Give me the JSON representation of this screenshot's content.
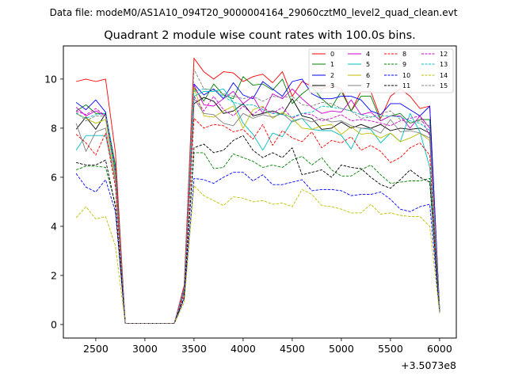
{
  "figure": {
    "suptitle": "Data file: modeM0/AS1A10_094T20_9000004164_29060cztM0_level2_quad_clean.evt"
  },
  "chart_data": {
    "type": "line",
    "title": "Quadrant 2 module wise count rates with 100.0s bins.",
    "xlabel": "",
    "ylabel": "",
    "offset_label": "+3.5073e8",
    "xlim": [
      2170,
      6170
    ],
    "ylim": [
      -0.55,
      11.35
    ],
    "xticks": [
      2500,
      3000,
      3500,
      4000,
      4500,
      5000,
      5500,
      6000
    ],
    "yticks": [
      0,
      2,
      4,
      6,
      8,
      10
    ],
    "grid": false,
    "legend_position": "top-right",
    "x": [
      2300,
      2400,
      2500,
      2600,
      2700,
      2800,
      2900,
      3000,
      3100,
      3200,
      3300,
      3400,
      3500,
      3600,
      3700,
      3800,
      3900,
      4000,
      4100,
      4200,
      4300,
      4400,
      4500,
      4600,
      4700,
      4800,
      4900,
      5000,
      5100,
      5200,
      5300,
      5400,
      5500,
      5600,
      5700,
      5800,
      5900,
      6000
    ],
    "series": [
      {
        "name": "0",
        "color": "#ff0000",
        "dash": false,
        "values": [
          9.9,
          10.0,
          9.9,
          10.0,
          7.0,
          0.05,
          0.05,
          0.05,
          0.05,
          0.05,
          0.05,
          1.6,
          10.85,
          10.3,
          10.0,
          10.3,
          10.25,
          9.9,
          10.1,
          10.2,
          9.85,
          10.3,
          9.3,
          9.9,
          9.7,
          9.6,
          9.75,
          9.6,
          8.7,
          9.5,
          9.5,
          8.4,
          9.3,
          9.6,
          9.3,
          8.8,
          8.9,
          0.65
        ]
      },
      {
        "name": "1",
        "color": "#008000",
        "dash": false,
        "values": [
          8.7,
          8.95,
          8.6,
          8.6,
          6.5,
          0.05,
          0.05,
          0.05,
          0.05,
          0.05,
          0.05,
          1.5,
          9.65,
          9.1,
          9.8,
          9.35,
          9.2,
          10.1,
          9.75,
          9.8,
          9.55,
          10.0,
          9.0,
          9.4,
          9.7,
          9.2,
          8.85,
          9.5,
          8.7,
          9.3,
          9.3,
          8.3,
          8.5,
          8.6,
          8.2,
          8.35,
          8.35,
          0.6
        ]
      },
      {
        "name": "2",
        "color": "#0000ff",
        "dash": false,
        "values": [
          9.05,
          8.75,
          9.15,
          8.65,
          6.3,
          0.05,
          0.05,
          0.05,
          0.05,
          0.05,
          0.05,
          1.45,
          9.8,
          9.35,
          9.6,
          9.2,
          9.85,
          9.35,
          9.2,
          9.9,
          9.6,
          9.3,
          9.9,
          10.0,
          9.4,
          9.2,
          9.2,
          9.3,
          9.3,
          9.15,
          8.7,
          8.55,
          9.0,
          9.0,
          8.75,
          8.5,
          8.9,
          0.6
        ]
      },
      {
        "name": "3",
        "color": "#000000",
        "dash": false,
        "values": [
          7.95,
          8.45,
          7.95,
          8.6,
          6.1,
          0.05,
          0.05,
          0.05,
          0.05,
          0.05,
          0.05,
          1.4,
          9.0,
          9.25,
          9.1,
          8.6,
          8.7,
          9.0,
          8.5,
          8.6,
          8.7,
          8.55,
          9.2,
          8.5,
          8.4,
          7.95,
          8.0,
          8.25,
          8.0,
          8.15,
          8.0,
          8.15,
          7.9,
          8.0,
          7.95,
          8.0,
          7.8,
          0.55
        ]
      },
      {
        "name": "4",
        "color": "#cc00cc",
        "dash": false,
        "values": [
          8.85,
          8.5,
          8.7,
          8.5,
          6.2,
          0.05,
          0.05,
          0.05,
          0.05,
          0.05,
          0.05,
          1.5,
          9.75,
          8.95,
          8.9,
          9.2,
          9.5,
          9.0,
          9.3,
          8.6,
          9.4,
          9.2,
          9.6,
          9.2,
          8.85,
          8.6,
          8.7,
          8.65,
          9.15,
          8.55,
          8.65,
          8.3,
          8.5,
          8.5,
          8.0,
          8.5,
          8.0,
          0.6
        ]
      },
      {
        "name": "5",
        "color": "#00bfbf",
        "dash": false,
        "values": [
          7.1,
          7.7,
          7.7,
          7.7,
          5.9,
          0.05,
          0.05,
          0.05,
          0.05,
          0.05,
          0.05,
          1.35,
          9.3,
          9.5,
          9.5,
          9.6,
          9.05,
          8.2,
          7.75,
          7.1,
          7.8,
          7.65,
          8.3,
          8.4,
          7.95,
          7.9,
          7.9,
          7.7,
          7.15,
          8.0,
          7.95,
          7.4,
          7.8,
          7.45,
          8.6,
          7.85,
          6.4,
          0.55
        ]
      },
      {
        "name": "6",
        "color": "#bfbf00",
        "dash": false,
        "values": [
          8.6,
          8.4,
          8.2,
          8.35,
          6.0,
          0.05,
          0.05,
          0.05,
          0.05,
          0.05,
          0.05,
          1.3,
          9.65,
          8.5,
          8.45,
          8.7,
          8.9,
          8.0,
          8.75,
          8.9,
          8.4,
          8.65,
          8.4,
          8.0,
          7.95,
          8.1,
          8.15,
          7.75,
          8.05,
          7.75,
          7.8,
          7.6,
          7.8,
          7.45,
          7.6,
          7.8,
          7.5,
          0.55
        ]
      },
      {
        "name": "7",
        "color": "#808080",
        "dash": false,
        "values": [
          8.2,
          7.05,
          7.85,
          8.0,
          5.8,
          0.05,
          0.05,
          0.05,
          0.05,
          0.05,
          0.05,
          1.3,
          9.2,
          8.6,
          8.55,
          8.2,
          8.1,
          8.6,
          8.4,
          8.55,
          8.45,
          8.6,
          8.25,
          8.4,
          8.25,
          8.4,
          8.25,
          8.3,
          8.1,
          8.0,
          8.0,
          7.8,
          8.35,
          7.85,
          7.9,
          7.8,
          7.6,
          0.55
        ]
      },
      {
        "name": "8",
        "color": "#ff0000",
        "dash": true,
        "values": [
          7.75,
          7.4,
          6.9,
          7.8,
          5.6,
          0.05,
          0.05,
          0.05,
          0.05,
          0.05,
          0.05,
          1.25,
          8.4,
          8.0,
          8.15,
          8.1,
          7.85,
          7.95,
          7.55,
          8.15,
          7.3,
          7.9,
          7.6,
          7.45,
          7.85,
          7.2,
          7.5,
          7.4,
          7.65,
          7.1,
          7.3,
          7.05,
          6.6,
          6.8,
          7.2,
          7.4,
          6.9,
          0.5
        ]
      },
      {
        "name": "9",
        "color": "#008000",
        "dash": true,
        "values": [
          6.3,
          6.45,
          6.45,
          6.4,
          4.9,
          0.05,
          0.05,
          0.05,
          0.05,
          0.05,
          0.05,
          1.1,
          7.0,
          7.0,
          6.35,
          6.4,
          6.95,
          6.8,
          6.65,
          6.4,
          6.5,
          6.4,
          6.7,
          6.85,
          6.5,
          6.8,
          6.3,
          6.05,
          6.05,
          6.3,
          6.5,
          6.1,
          5.75,
          5.8,
          5.85,
          5.85,
          5.95,
          0.5
        ]
      },
      {
        "name": "10",
        "color": "#0000ff",
        "dash": true,
        "values": [
          6.15,
          5.6,
          5.4,
          5.9,
          4.6,
          0.05,
          0.05,
          0.05,
          0.05,
          0.05,
          0.05,
          1.05,
          5.95,
          5.9,
          5.75,
          6.0,
          6.2,
          6.2,
          5.85,
          6.1,
          5.7,
          5.7,
          5.8,
          5.9,
          5.45,
          5.5,
          5.5,
          5.45,
          5.25,
          5.3,
          5.3,
          5.4,
          5.1,
          4.7,
          4.6,
          4.8,
          4.9,
          0.5
        ]
      },
      {
        "name": "11",
        "color": "#000000",
        "dash": true,
        "values": [
          6.6,
          6.5,
          6.5,
          6.7,
          4.8,
          0.05,
          0.05,
          0.05,
          0.05,
          0.05,
          0.05,
          1.1,
          7.2,
          7.35,
          7.0,
          7.1,
          7.5,
          7.7,
          7.1,
          6.8,
          7.0,
          6.8,
          7.2,
          6.1,
          6.2,
          6.3,
          6.0,
          6.5,
          6.4,
          6.35,
          6.0,
          5.7,
          5.55,
          5.9,
          6.3,
          6.0,
          5.8,
          0.5
        ]
      },
      {
        "name": "12",
        "color": "#cc00cc",
        "dash": true,
        "values": [
          8.7,
          8.55,
          8.8,
          8.5,
          6.2,
          0.05,
          0.05,
          0.05,
          0.05,
          0.05,
          0.05,
          1.4,
          9.3,
          8.7,
          9.3,
          8.75,
          8.5,
          8.9,
          8.55,
          8.85,
          8.6,
          8.85,
          8.4,
          8.6,
          8.55,
          8.3,
          8.4,
          8.55,
          8.3,
          8.35,
          8.3,
          8.2,
          8.1,
          8.3,
          8.4,
          8.5,
          7.7,
          0.55
        ]
      },
      {
        "name": "13",
        "color": "#00bfbf",
        "dash": true,
        "values": [
          8.6,
          8.4,
          8.55,
          8.6,
          6.3,
          0.05,
          0.05,
          0.05,
          0.05,
          0.05,
          0.05,
          1.4,
          9.5,
          9.6,
          9.55,
          9.3,
          9.05,
          8.95,
          8.95,
          8.75,
          8.6,
          8.55,
          8.45,
          8.6,
          8.65,
          8.9,
          8.85,
          8.8,
          8.7,
          8.55,
          8.45,
          8.5,
          8.5,
          8.45,
          8.3,
          8.2,
          7.9,
          0.6
        ]
      },
      {
        "name": "14",
        "color": "#bfbf00",
        "dash": true,
        "values": [
          4.35,
          4.8,
          4.3,
          4.4,
          3.2,
          0.05,
          0.05,
          0.05,
          0.05,
          0.05,
          0.05,
          0.9,
          5.65,
          5.25,
          5.05,
          4.85,
          5.2,
          5.15,
          5.0,
          5.05,
          4.9,
          4.95,
          4.8,
          5.5,
          5.3,
          4.85,
          4.8,
          4.7,
          4.55,
          4.55,
          4.9,
          4.5,
          4.55,
          4.45,
          4.4,
          4.4,
          4.0,
          0.45
        ]
      },
      {
        "name": "15",
        "color": "#808080",
        "dash": true,
        "values": [
          8.65,
          8.3,
          8.5,
          8.5,
          6.1,
          0.05,
          0.05,
          0.05,
          0.05,
          0.05,
          0.05,
          1.5,
          10.4,
          9.6,
          9.55,
          9.4,
          9.3,
          9.2,
          9.3,
          9.1,
          9.3,
          9.25,
          9.3,
          8.95,
          8.9,
          9.05,
          9.0,
          8.8,
          8.7,
          8.4,
          8.45,
          8.6,
          8.7,
          8.35,
          8.2,
          8.3,
          8.1,
          0.6
        ]
      }
    ]
  }
}
